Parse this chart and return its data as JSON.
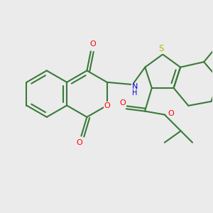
{
  "bg_color": "#ebebeb",
  "bond_color": "#3a7a3a",
  "bond_width": 1.5,
  "atom_colors": {
    "O": "#ff0000",
    "N": "#0000cc",
    "S": "#b8b800",
    "C": "#3a7a3a"
  },
  "figsize": [
    3.0,
    3.0
  ],
  "dpi": 100
}
